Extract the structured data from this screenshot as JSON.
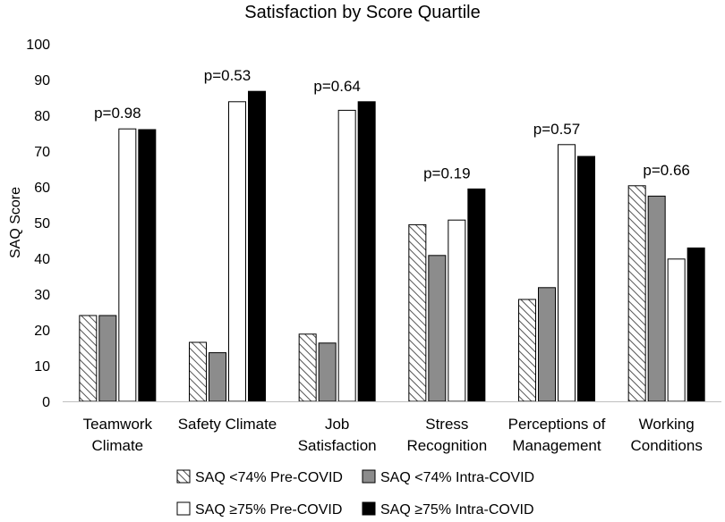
{
  "chart_data": {
    "type": "bar",
    "title": "Satisfaction by Score Quartile",
    "xlabel": "",
    "ylabel": "SAQ Score",
    "ylim": [
      0,
      100
    ],
    "yticks": [
      0,
      10,
      20,
      30,
      40,
      50,
      60,
      70,
      80,
      90,
      100
    ],
    "grid": false,
    "legend_position": "bottom",
    "categories": [
      [
        "Teamwork",
        "Climate"
      ],
      [
        "Safety Climate"
      ],
      [
        "Job",
        "Satisfaction"
      ],
      [
        "Stress",
        "Recognition"
      ],
      [
        "Perceptions of",
        "Management"
      ],
      [
        "Working",
        "Conditions"
      ]
    ],
    "annotations": [
      "p=0.98",
      "p=0.53",
      "p=0.64",
      "p=0.19",
      "p=0.57",
      "p=0.66"
    ],
    "series": [
      {
        "name": "SAQ <74% Pre-COVID",
        "style": "hatch",
        "values": [
          24,
          16.5,
          18.8,
          49.4,
          28.5,
          60.3
        ]
      },
      {
        "name": "SAQ <74% Intra-COVID",
        "style": "gray",
        "color": "#8c8c8c",
        "values": [
          24,
          13.6,
          16.3,
          40.8,
          31.8,
          57.4
        ]
      },
      {
        "name": "SAQ ≥75% Pre-COVID",
        "style": "white",
        "color": "#ffffff",
        "values": [
          76.2,
          83.8,
          81.4,
          50.7,
          71.8,
          39.8
        ]
      },
      {
        "name": "SAQ ≥75% Intra-COVID",
        "style": "black",
        "color": "#000000",
        "values": [
          76,
          86.7,
          83.8,
          59.4,
          68.5,
          42.9
        ]
      }
    ]
  }
}
